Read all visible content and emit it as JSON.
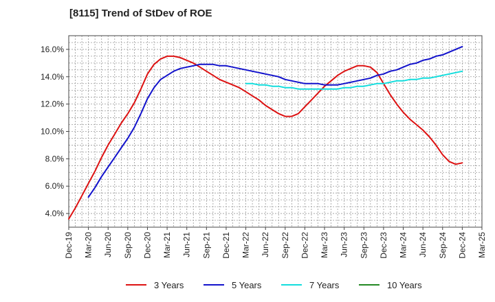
{
  "chart_data": {
    "type": "line",
    "title": "[8115]  Trend of StDev of ROE",
    "xlabel": "",
    "ylabel": "",
    "x_ticks": [
      "Dec-19",
      "Mar-20",
      "Jun-20",
      "Sep-20",
      "Dec-20",
      "Mar-21",
      "Jun-21",
      "Sep-21",
      "Dec-21",
      "Mar-22",
      "Jun-22",
      "Sep-22",
      "Dec-22",
      "Mar-23",
      "Jun-23",
      "Sep-23",
      "Dec-23",
      "Mar-24",
      "Jun-24",
      "Sep-24",
      "Dec-24",
      "Mar-25"
    ],
    "y_ticks": [
      "4.0%",
      "6.0%",
      "8.0%",
      "10.0%",
      "12.0%",
      "14.0%",
      "16.0%"
    ],
    "ylim": [
      3.0,
      17.0
    ],
    "grid": true,
    "legend_position": "bottom",
    "series": [
      {
        "name": "3 Years",
        "color": "#dd1111",
        "points": [
          [
            "Dec-19",
            3.6
          ],
          [
            "Jan-20",
            4.4
          ],
          [
            "Feb-20",
            5.3
          ],
          [
            "Mar-20",
            6.2
          ],
          [
            "Apr-20",
            7.1
          ],
          [
            "May-20",
            8.1
          ],
          [
            "Jun-20",
            9.0
          ],
          [
            "Jul-20",
            9.8
          ],
          [
            "Aug-20",
            10.6
          ],
          [
            "Sep-20",
            11.3
          ],
          [
            "Oct-20",
            12.1
          ],
          [
            "Nov-20",
            13.1
          ],
          [
            "Dec-20",
            14.2
          ],
          [
            "Jan-21",
            14.9
          ],
          [
            "Feb-21",
            15.3
          ],
          [
            "Mar-21",
            15.5
          ],
          [
            "Apr-21",
            15.5
          ],
          [
            "May-21",
            15.4
          ],
          [
            "Jun-21",
            15.2
          ],
          [
            "Jul-21",
            15.0
          ],
          [
            "Aug-21",
            14.7
          ],
          [
            "Sep-21",
            14.4
          ],
          [
            "Oct-21",
            14.1
          ],
          [
            "Nov-21",
            13.8
          ],
          [
            "Dec-21",
            13.6
          ],
          [
            "Jan-22",
            13.4
          ],
          [
            "Feb-22",
            13.2
          ],
          [
            "Mar-22",
            12.9
          ],
          [
            "Apr-22",
            12.6
          ],
          [
            "May-22",
            12.3
          ],
          [
            "Jun-22",
            11.9
          ],
          [
            "Jul-22",
            11.6
          ],
          [
            "Aug-22",
            11.3
          ],
          [
            "Sep-22",
            11.1
          ],
          [
            "Oct-22",
            11.1
          ],
          [
            "Nov-22",
            11.3
          ],
          [
            "Dec-22",
            11.8
          ],
          [
            "Jan-23",
            12.3
          ],
          [
            "Feb-23",
            12.8
          ],
          [
            "Mar-23",
            13.3
          ],
          [
            "Apr-23",
            13.7
          ],
          [
            "May-23",
            14.1
          ],
          [
            "Jun-23",
            14.4
          ],
          [
            "Jul-23",
            14.6
          ],
          [
            "Aug-23",
            14.8
          ],
          [
            "Sep-23",
            14.8
          ],
          [
            "Oct-23",
            14.7
          ],
          [
            "Nov-23",
            14.3
          ],
          [
            "Dec-23",
            13.5
          ],
          [
            "Jan-24",
            12.7
          ],
          [
            "Feb-24",
            12.0
          ],
          [
            "Mar-24",
            11.4
          ],
          [
            "Apr-24",
            10.9
          ],
          [
            "May-24",
            10.5
          ],
          [
            "Jun-24",
            10.1
          ],
          [
            "Jul-24",
            9.6
          ],
          [
            "Aug-24",
            9.0
          ],
          [
            "Sep-24",
            8.3
          ],
          [
            "Oct-24",
            7.8
          ],
          [
            "Nov-24",
            7.6
          ],
          [
            "Dec-24",
            7.7
          ]
        ]
      },
      {
        "name": "5 Years",
        "color": "#1111cc",
        "points": [
          [
            "Mar-20",
            5.2
          ],
          [
            "Apr-20",
            5.9
          ],
          [
            "May-20",
            6.7
          ],
          [
            "Jun-20",
            7.4
          ],
          [
            "Jul-20",
            8.1
          ],
          [
            "Aug-20",
            8.8
          ],
          [
            "Sep-20",
            9.5
          ],
          [
            "Oct-20",
            10.3
          ],
          [
            "Nov-20",
            11.3
          ],
          [
            "Dec-20",
            12.4
          ],
          [
            "Jan-21",
            13.2
          ],
          [
            "Feb-21",
            13.8
          ],
          [
            "Mar-21",
            14.1
          ],
          [
            "Apr-21",
            14.4
          ],
          [
            "May-21",
            14.6
          ],
          [
            "Jun-21",
            14.7
          ],
          [
            "Jul-21",
            14.8
          ],
          [
            "Aug-21",
            14.9
          ],
          [
            "Sep-21",
            14.9
          ],
          [
            "Oct-21",
            14.9
          ],
          [
            "Nov-21",
            14.8
          ],
          [
            "Dec-21",
            14.8
          ],
          [
            "Jan-22",
            14.7
          ],
          [
            "Feb-22",
            14.6
          ],
          [
            "Mar-22",
            14.5
          ],
          [
            "Apr-22",
            14.4
          ],
          [
            "May-22",
            14.3
          ],
          [
            "Jun-22",
            14.2
          ],
          [
            "Jul-22",
            14.1
          ],
          [
            "Aug-22",
            14.0
          ],
          [
            "Sep-22",
            13.8
          ],
          [
            "Oct-22",
            13.7
          ],
          [
            "Nov-22",
            13.6
          ],
          [
            "Dec-22",
            13.5
          ],
          [
            "Jan-23",
            13.5
          ],
          [
            "Feb-23",
            13.5
          ],
          [
            "Mar-23",
            13.4
          ],
          [
            "Apr-23",
            13.4
          ],
          [
            "May-23",
            13.4
          ],
          [
            "Jun-23",
            13.5
          ],
          [
            "Jul-23",
            13.6
          ],
          [
            "Aug-23",
            13.7
          ],
          [
            "Sep-23",
            13.8
          ],
          [
            "Oct-23",
            13.9
          ],
          [
            "Nov-23",
            14.1
          ],
          [
            "Dec-23",
            14.2
          ],
          [
            "Jan-24",
            14.4
          ],
          [
            "Feb-24",
            14.5
          ],
          [
            "Mar-24",
            14.7
          ],
          [
            "Apr-24",
            14.9
          ],
          [
            "May-24",
            15.0
          ],
          [
            "Jun-24",
            15.2
          ],
          [
            "Jul-24",
            15.3
          ],
          [
            "Aug-24",
            15.5
          ],
          [
            "Sep-24",
            15.6
          ],
          [
            "Oct-24",
            15.8
          ],
          [
            "Nov-24",
            16.0
          ],
          [
            "Dec-24",
            16.2
          ]
        ]
      },
      {
        "name": "7 Years",
        "color": "#11dddd",
        "points": [
          [
            "Mar-22",
            13.5
          ],
          [
            "Apr-22",
            13.5
          ],
          [
            "May-22",
            13.4
          ],
          [
            "Jun-22",
            13.4
          ],
          [
            "Jul-22",
            13.3
          ],
          [
            "Aug-22",
            13.3
          ],
          [
            "Sep-22",
            13.2
          ],
          [
            "Oct-22",
            13.2
          ],
          [
            "Nov-22",
            13.1
          ],
          [
            "Dec-22",
            13.1
          ],
          [
            "Jan-23",
            13.1
          ],
          [
            "Feb-23",
            13.1
          ],
          [
            "Mar-23",
            13.1
          ],
          [
            "Apr-23",
            13.1
          ],
          [
            "May-23",
            13.1
          ],
          [
            "Jun-23",
            13.2
          ],
          [
            "Jul-23",
            13.2
          ],
          [
            "Aug-23",
            13.3
          ],
          [
            "Sep-23",
            13.3
          ],
          [
            "Oct-23",
            13.4
          ],
          [
            "Nov-23",
            13.5
          ],
          [
            "Dec-23",
            13.5
          ],
          [
            "Jan-24",
            13.6
          ],
          [
            "Feb-24",
            13.7
          ],
          [
            "Mar-24",
            13.7
          ],
          [
            "Apr-24",
            13.8
          ],
          [
            "May-24",
            13.8
          ],
          [
            "Jun-24",
            13.9
          ],
          [
            "Jul-24",
            13.9
          ],
          [
            "Aug-24",
            14.0
          ],
          [
            "Sep-24",
            14.1
          ],
          [
            "Oct-24",
            14.2
          ],
          [
            "Nov-24",
            14.3
          ],
          [
            "Dec-24",
            14.4
          ]
        ]
      },
      {
        "name": "10 Years",
        "color": "#228822",
        "points": []
      }
    ]
  }
}
